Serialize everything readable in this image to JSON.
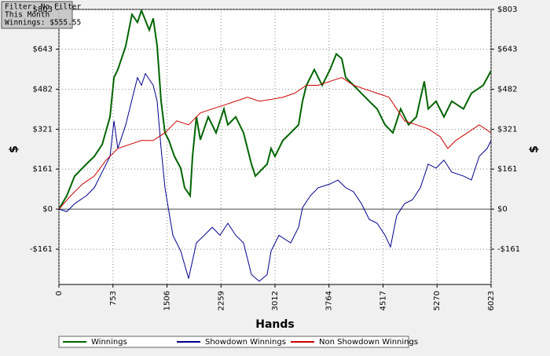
{
  "chart_data": {
    "type": "line",
    "annotations": [
      "Filter: No Filter",
      "This Month",
      "Winnings: $555.55"
    ],
    "x_label": "Hands",
    "y_label": "$",
    "xlim": [
      0,
      6023
    ],
    "xticks": [
      0,
      753,
      1506,
      2259,
      3012,
      3764,
      4517,
      5270,
      6023
    ],
    "ylim": [
      -303,
      803
    ],
    "yticks": [
      {
        "value": -161,
        "label": "-$161"
      },
      {
        "value": 0,
        "label": "$0"
      },
      {
        "value": 161,
        "label": "$161"
      },
      {
        "value": 321,
        "label": "$321"
      },
      {
        "value": 482,
        "label": "$482"
      },
      {
        "value": 643,
        "label": "$643"
      },
      {
        "value": 803,
        "label": "$803"
      }
    ],
    "grid": true,
    "legend": "bottom",
    "series": [
      {
        "name": "Winnings",
        "color": "#006400",
        "x": [
          0,
          110,
          219,
          383,
          493,
          603,
          712,
          767,
          821,
          931,
          1018,
          1095,
          1150,
          1259,
          1314,
          1369,
          1424,
          1478,
          1533,
          1610,
          1697,
          1752,
          1829,
          1862,
          1916,
          1971,
          2081,
          2190,
          2300,
          2354,
          2464,
          2573,
          2683,
          2738,
          2792,
          2902,
          2957,
          3011,
          3121,
          3230,
          3340,
          3395,
          3450,
          3559,
          3669,
          3778,
          3866,
          3942,
          3997,
          4106,
          4216,
          4325,
          4435,
          4545,
          4654,
          4709,
          4763,
          4873,
          4982,
          5092,
          5147,
          5256,
          5366,
          5475,
          5639,
          5749,
          5913,
          6023
        ],
        "values": [
          0,
          54,
          133,
          181,
          212,
          260,
          371,
          529,
          561,
          656,
          783,
          751,
          799,
          720,
          767,
          656,
          434,
          307,
          276,
          212,
          165,
          86,
          54,
          212,
          371,
          279,
          371,
          307,
          403,
          339,
          371,
          307,
          181,
          133,
          149,
          181,
          244,
          212,
          276,
          307,
          339,
          434,
          498,
          561,
          498,
          561,
          624,
          605,
          529,
          498,
          466,
          434,
          403,
          339,
          307,
          355,
          403,
          339,
          371,
          514,
          403,
          434,
          371,
          434,
          403,
          466,
          498,
          556
        ]
      },
      {
        "name": "Showdown Winnings",
        "color": "#00008b",
        "x": [
          0,
          110,
          219,
          383,
          493,
          603,
          712,
          767,
          821,
          931,
          1040,
          1095,
          1150,
          1205,
          1314,
          1369,
          1424,
          1478,
          1533,
          1588,
          1697,
          1807,
          1916,
          2026,
          2136,
          2245,
          2354,
          2464,
          2573,
          2683,
          2792,
          2902,
          2957,
          3066,
          3230,
          3340,
          3395,
          3505,
          3614,
          3778,
          3888,
          3997,
          4106,
          4216,
          4325,
          4435,
          4545,
          4621,
          4709,
          4818,
          4928,
          5037,
          5147,
          5256,
          5366,
          5475,
          5639,
          5749,
          5858,
          5968,
          6023
        ],
        "values": [
          0,
          -10,
          22,
          54,
          86,
          149,
          212,
          355,
          244,
          339,
          466,
          529,
          498,
          545,
          498,
          434,
          244,
          86,
          -10,
          -105,
          -168,
          -279,
          -136,
          -105,
          -73,
          -105,
          -57,
          -105,
          -136,
          -263,
          -290,
          -263,
          -168,
          -105,
          -136,
          -73,
          6,
          54,
          86,
          101,
          117,
          86,
          70,
          22,
          -41,
          -57,
          -105,
          -152,
          -25,
          22,
          38,
          86,
          181,
          165,
          197,
          149,
          133,
          117,
          212,
          244,
          276
        ]
      },
      {
        "name": "Non Showdown Winnings",
        "color": "#cc0000",
        "x": [
          0,
          164,
          329,
          493,
          657,
          821,
          986,
          1150,
          1314,
          1478,
          1643,
          1807,
          1971,
          2136,
          2300,
          2464,
          2628,
          2792,
          2957,
          3121,
          3285,
          3450,
          3614,
          3778,
          3942,
          4106,
          4271,
          4435,
          4599,
          4709,
          4818,
          4982,
          5147,
          5311,
          5420,
          5530,
          5694,
          5858,
          6023
        ],
        "values": [
          0,
          54,
          101,
          133,
          197,
          244,
          260,
          276,
          276,
          307,
          355,
          339,
          387,
          403,
          418,
          434,
          450,
          434,
          441,
          450,
          466,
          498,
          498,
          514,
          529,
          498,
          482,
          466,
          450,
          403,
          355,
          339,
          323,
          292,
          244,
          276,
          307,
          339,
          307
        ]
      }
    ]
  }
}
